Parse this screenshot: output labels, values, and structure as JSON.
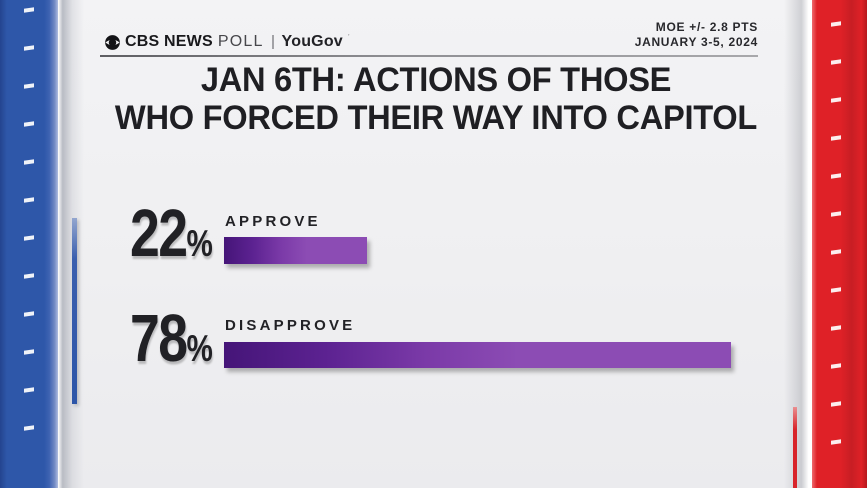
{
  "header": {
    "brand": {
      "cbs": "CBS NEWS",
      "poll": "POLL",
      "partner": "YouGov",
      "partner_mark": "’"
    },
    "moe": "MOE +/- 2.8 PTS",
    "dates": "JANUARY 3-5, 2024"
  },
  "title": {
    "line1": "JAN 6TH: ACTIONS OF THOSE",
    "line2": "WHO FORCED THEIR WAY INTO CAPITOL"
  },
  "chart_data": {
    "type": "bar",
    "orientation": "horizontal",
    "title": "JAN 6TH: ACTIONS OF THOSE WHO FORCED THEIR WAY INTO CAPITOL",
    "source_label": "CBS NEWS POLL | YouGov",
    "moe": "MOE +/- 2.8 PTS",
    "dates": "JANUARY 3-5, 2024",
    "categories": [
      "APPROVE",
      "DISAPPROVE"
    ],
    "values": [
      22,
      78
    ],
    "unit": "%",
    "xlim": [
      0,
      100
    ],
    "grid": false,
    "legend": false,
    "bar_gradient": [
      "#451578",
      "#8c4cb4"
    ]
  },
  "colors": {
    "left_stripe_blue": "#2e57a9",
    "right_stripe_red": "#df2127",
    "bar_purple_dark": "#451578",
    "bar_purple_light": "#8c4cb4",
    "card_background": "#f0f0f2",
    "text_dark": "#1f1f23"
  }
}
